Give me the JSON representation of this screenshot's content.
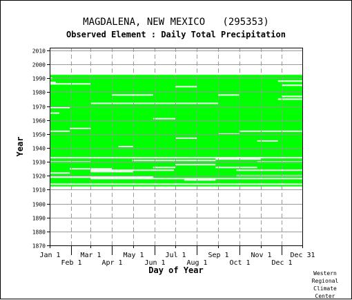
{
  "title": "MAGDALENA, NEW MEXICO   (295353)",
  "subtitle": "Observed Element : Daily Total Precipitation",
  "credit": [
    "Western",
    "Regional",
    "Climate",
    "Center"
  ],
  "colors": {
    "data": "#00ff00",
    "grid": "#999999",
    "axis": "#000000"
  },
  "chart_data": {
    "type": "heatmap",
    "title": "MAGDALENA, NEW MEXICO   (295353)",
    "subtitle": "Observed Element : Daily Total Precipitation",
    "xlabel": "Day of Year",
    "ylabel": "Year",
    "xlim": [
      1,
      365
    ],
    "ylim": [
      1870,
      2012
    ],
    "grid": true,
    "x_ticks": [
      {
        "day": 1,
        "label": "Jan 1"
      },
      {
        "day": 32,
        "label": "Feb 1"
      },
      {
        "day": 60,
        "label": "Mar 1"
      },
      {
        "day": 91,
        "label": "Apr 1"
      },
      {
        "day": 121,
        "label": "May 1"
      },
      {
        "day": 152,
        "label": "Jun 1"
      },
      {
        "day": 182,
        "label": "Jul 1"
      },
      {
        "day": 213,
        "label": "Aug 1"
      },
      {
        "day": 244,
        "label": "Sep 1"
      },
      {
        "day": 274,
        "label": "Oct 1"
      },
      {
        "day": 305,
        "label": "Nov 1"
      },
      {
        "day": 335,
        "label": "Dec 1"
      },
      {
        "day": 365,
        "label": "Dec 31"
      }
    ],
    "y_ticks": [
      1870,
      1880,
      1890,
      1900,
      1910,
      1920,
      1930,
      1940,
      1950,
      1960,
      1970,
      1980,
      1990,
      2000,
      2010
    ],
    "data_year_range": [
      1913,
      1992
    ],
    "missing_segments": [
      {
        "year": 1914,
        "start_day": 1,
        "end_day": 365
      },
      {
        "year": 1917,
        "start_day": 195,
        "end_day": 240
      },
      {
        "year": 1918,
        "start_day": 60,
        "end_day": 365
      },
      {
        "year": 1919,
        "start_day": 1,
        "end_day": 150
      },
      {
        "year": 1920,
        "start_day": 270,
        "end_day": 365
      },
      {
        "year": 1922,
        "start_day": 1,
        "end_day": 30
      },
      {
        "year": 1923,
        "start_day": 60,
        "end_day": 121
      },
      {
        "year": 1924,
        "start_day": 60,
        "end_day": 180
      },
      {
        "year": 1924,
        "start_day": 270,
        "end_day": 365
      },
      {
        "year": 1925,
        "start_day": 30,
        "end_day": 91
      },
      {
        "year": 1926,
        "start_day": 150,
        "end_day": 182
      },
      {
        "year": 1926,
        "start_day": 240,
        "end_day": 300
      },
      {
        "year": 1928,
        "start_day": 182,
        "end_day": 240
      },
      {
        "year": 1930,
        "start_day": 1,
        "end_day": 60
      },
      {
        "year": 1930,
        "start_day": 300,
        "end_day": 365
      },
      {
        "year": 1931,
        "start_day": 120,
        "end_day": 240
      },
      {
        "year": 1932,
        "start_day": 240,
        "end_day": 305
      },
      {
        "year": 1933,
        "start_day": 1,
        "end_day": 365
      },
      {
        "year": 1941,
        "start_day": 100,
        "end_day": 121
      },
      {
        "year": 1945,
        "start_day": 300,
        "end_day": 330
      },
      {
        "year": 1947,
        "start_day": 182,
        "end_day": 213
      },
      {
        "year": 1950,
        "start_day": 244,
        "end_day": 274
      },
      {
        "year": 1952,
        "start_day": 1,
        "end_day": 30
      },
      {
        "year": 1952,
        "start_day": 274,
        "end_day": 365
      },
      {
        "year": 1954,
        "start_day": 30,
        "end_day": 60
      },
      {
        "year": 1961,
        "start_day": 150,
        "end_day": 182
      },
      {
        "year": 1965,
        "start_day": 1,
        "end_day": 15
      },
      {
        "year": 1969,
        "start_day": 1,
        "end_day": 30
      },
      {
        "year": 1972,
        "start_day": 60,
        "end_day": 244
      },
      {
        "year": 1975,
        "start_day": 330,
        "end_day": 365
      },
      {
        "year": 1977,
        "start_day": 335,
        "end_day": 365
      },
      {
        "year": 1978,
        "start_day": 91,
        "end_day": 150
      },
      {
        "year": 1978,
        "start_day": 244,
        "end_day": 274
      },
      {
        "year": 1984,
        "start_day": 182,
        "end_day": 213
      },
      {
        "year": 1985,
        "start_day": 335,
        "end_day": 365
      },
      {
        "year": 1986,
        "start_day": 1,
        "end_day": 60
      },
      {
        "year": 1987,
        "start_day": 1,
        "end_day": 10
      },
      {
        "year": 1988,
        "start_day": 330,
        "end_day": 365
      },
      {
        "year": 1990,
        "start_day": 1,
        "end_day": 5
      }
    ]
  }
}
